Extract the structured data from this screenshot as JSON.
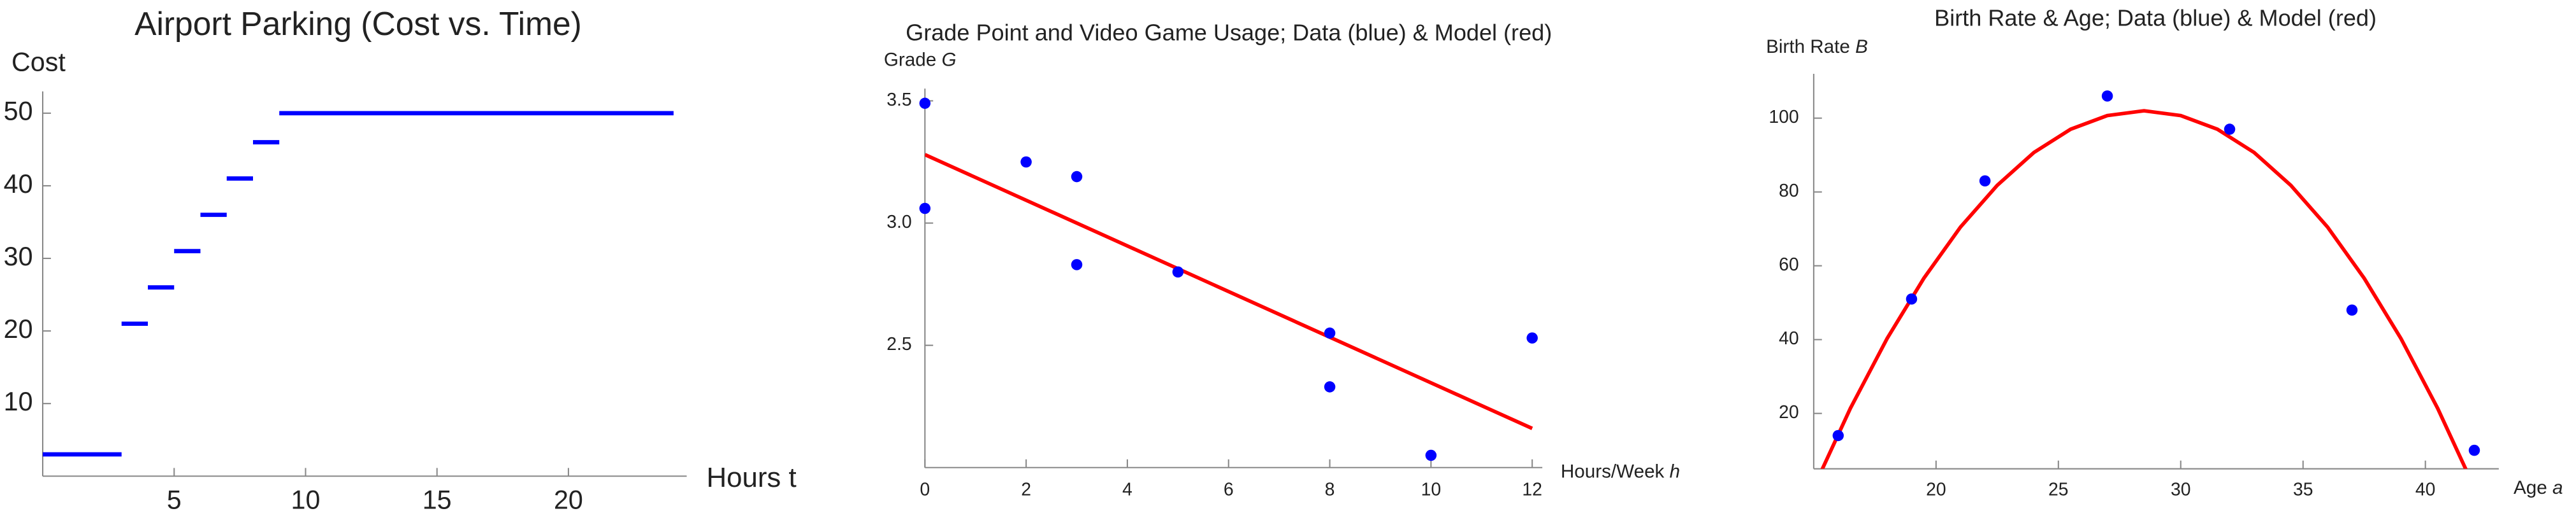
{
  "chart_data": [
    {
      "type": "step",
      "title": "Airport Parking (Cost vs. Time)",
      "x_label": "Hours t",
      "y_label": "Cost",
      "color": "#0000ff",
      "steps": [
        {
          "start": 0,
          "end": 3,
          "value": 3
        },
        {
          "start": 3,
          "end": 4,
          "value": 21
        },
        {
          "start": 4,
          "end": 5,
          "value": 26
        },
        {
          "start": 5,
          "end": 6,
          "value": 31
        },
        {
          "start": 6,
          "end": 7,
          "value": 36
        },
        {
          "start": 7,
          "end": 8,
          "value": 41
        },
        {
          "start": 8,
          "end": 9,
          "value": 46
        },
        {
          "start": 9,
          "end": 24,
          "value": 50
        }
      ],
      "xlim": [
        0,
        24.5
      ],
      "ylim": [
        0,
        53
      ],
      "xticks": [
        5,
        10,
        15,
        20
      ],
      "yticks": [
        10,
        20,
        30,
        40,
        50
      ]
    },
    {
      "type": "scatter",
      "title": "Grade Point and Video Game Usage; Data (blue) & Model (red)",
      "x_label": "Hours/Week",
      "x_label_var": "h",
      "y_label": "Grade",
      "y_label_var": "G",
      "data": {
        "color": "#0000ff",
        "x": [
          0,
          0,
          2,
          3,
          3,
          5,
          8,
          8,
          10,
          12
        ],
        "values": [
          3.49,
          3.06,
          3.25,
          3.19,
          2.83,
          2.8,
          2.55,
          2.33,
          2.05,
          2.53
        ]
      },
      "model": {
        "color": "#ff0000",
        "x": [
          0,
          12
        ],
        "values": [
          3.28,
          2.16
        ]
      },
      "xlim": [
        0,
        12.2
      ],
      "ylim": [
        2.0,
        3.55
      ],
      "xticks": [
        0,
        2,
        4,
        6,
        8,
        10,
        12
      ],
      "yticks": [
        2.5,
        {
          "value": 3.0,
          "label": "3.0"
        },
        3.5
      ]
    },
    {
      "type": "scatter",
      "title": "Birth Rate & Age; Data (blue) & Model (red)",
      "x_label": "Age",
      "x_label_var": "a",
      "y_label": "Birth Rate",
      "y_label_var": "B",
      "data": {
        "color": "#0000ff",
        "x": [
          16,
          19,
          22,
          27,
          32,
          37,
          42
        ],
        "values": [
          14,
          51,
          83,
          106,
          97,
          48,
          10
        ]
      },
      "model": {
        "color": "#ff0000",
        "x": [
          15,
          16.5,
          18,
          19.5,
          21,
          22.5,
          24,
          25.5,
          27,
          28.5,
          30,
          31.5,
          33,
          34.5,
          36,
          37.5,
          39,
          40.5,
          42
        ],
        "values": [
          -0.1,
          21.4,
          40.3,
          56.6,
          70.5,
          81.8,
          90.7,
          97.0,
          100.7,
          102,
          100.7,
          97.0,
          90.7,
          81.8,
          70.5,
          56.6,
          40.3,
          21.4,
          -0.1
        ]
      },
      "xlim": [
        15,
        43
      ],
      "ylim": [
        5,
        112
      ],
      "xticks": [
        20,
        25,
        30,
        35,
        40
      ],
      "yticks": [
        20,
        40,
        60,
        80,
        100
      ]
    }
  ]
}
